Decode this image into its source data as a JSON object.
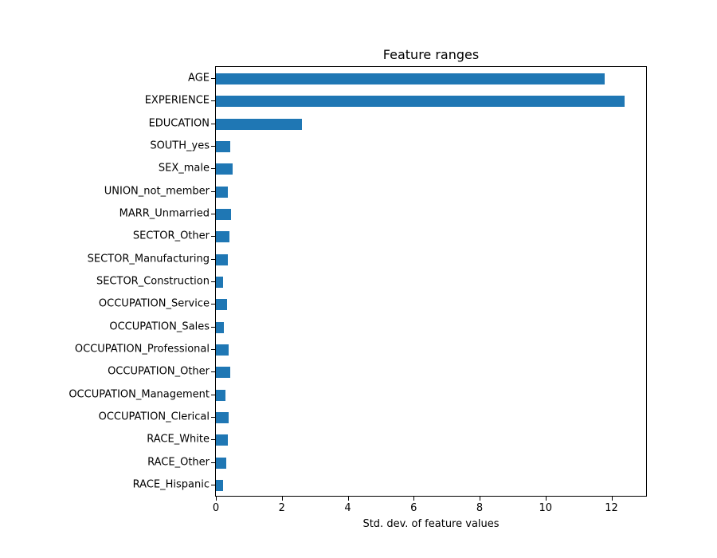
{
  "chart_data": {
    "type": "bar",
    "orientation": "horizontal",
    "title": "Feature ranges",
    "xlabel": "Std. dev. of feature values",
    "ylabel": "",
    "xlim": [
      0,
      13.05
    ],
    "xticks": [
      0,
      2,
      4,
      6,
      8,
      10,
      12
    ],
    "grid": false,
    "legend": null,
    "bar_color": "#1f77b4",
    "categories": [
      "AGE",
      "EXPERIENCE",
      "EDUCATION",
      "SOUTH_yes",
      "SEX_male",
      "UNION_not_member",
      "MARR_Unmarried",
      "SECTOR_Other",
      "SECTOR_Manufacturing",
      "SECTOR_Construction",
      "OCCUPATION_Service",
      "OCCUPATION_Sales",
      "OCCUPATION_Professional",
      "OCCUPATION_Other",
      "OCCUPATION_Management",
      "OCCUPATION_Clerical",
      "RACE_White",
      "RACE_Other",
      "RACE_Hispanic"
    ],
    "values": [
      11.8,
      12.4,
      2.6,
      0.44,
      0.5,
      0.37,
      0.47,
      0.4,
      0.37,
      0.21,
      0.35,
      0.24,
      0.39,
      0.43,
      0.29,
      0.39,
      0.37,
      0.32,
      0.21
    ]
  }
}
